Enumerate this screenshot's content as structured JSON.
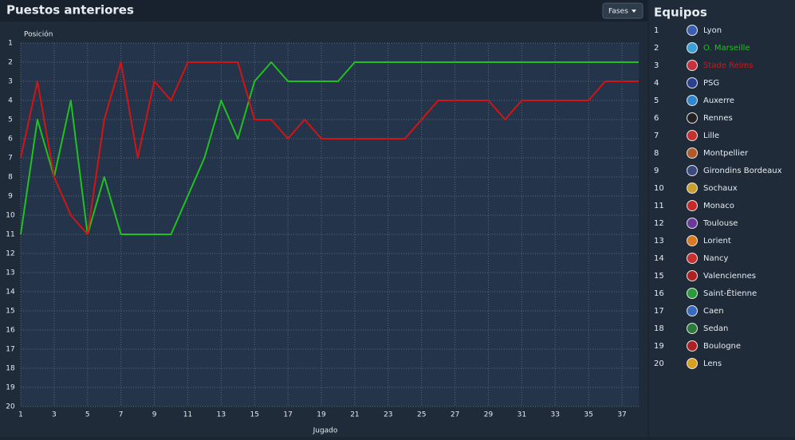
{
  "header": {
    "title": "Puestos anteriores",
    "button": "Fases",
    "panel_title": "Equipos"
  },
  "chart_data": {
    "type": "line",
    "x_label": "Jugado",
    "y_label": "Posición",
    "x": [
      1,
      2,
      3,
      4,
      5,
      6,
      7,
      8,
      9,
      10,
      11,
      12,
      13,
      14,
      15,
      16,
      17,
      18,
      19,
      20,
      21,
      22,
      23,
      24,
      25,
      26,
      27,
      28,
      29,
      30,
      31,
      32,
      33,
      34,
      35,
      36,
      37,
      38
    ],
    "series": [
      {
        "name": "O. Marseille",
        "color": "#1fc21f",
        "values": [
          11,
          5,
          8,
          4,
          11,
          8,
          11,
          11,
          11,
          11,
          9,
          7,
          4,
          6,
          3,
          2,
          3,
          3,
          3,
          3,
          2,
          2,
          2,
          2,
          2,
          2,
          2,
          2,
          2,
          2,
          2,
          2,
          2,
          2,
          2,
          2,
          2,
          2
        ]
      },
      {
        "name": "Stade Reims",
        "color": "#d41414",
        "values": [
          7,
          3,
          8,
          10,
          11,
          5,
          2,
          7,
          3,
          4,
          2,
          2,
          2,
          2,
          5,
          5,
          6,
          5,
          6,
          6,
          6,
          6,
          6,
          6,
          5,
          4,
          4,
          4,
          4,
          5,
          4,
          4,
          4,
          4,
          4,
          3,
          3,
          3
        ]
      }
    ],
    "xlim": [
      1,
      38
    ],
    "xticks": [
      1,
      3,
      5,
      7,
      9,
      11,
      13,
      15,
      17,
      19,
      21,
      23,
      25,
      27,
      29,
      31,
      33,
      35,
      37
    ],
    "ylim": [
      1,
      20
    ],
    "yticks": [
      1,
      2,
      3,
      4,
      5,
      6,
      7,
      8,
      9,
      10,
      11,
      12,
      13,
      14,
      15,
      16,
      17,
      18,
      19,
      20
    ],
    "y_inverted": true,
    "grid": true
  },
  "teams": [
    {
      "pos": 1,
      "name": "Lyon"
    },
    {
      "pos": 2,
      "name": "O. Marseille"
    },
    {
      "pos": 3,
      "name": "Stade Reims"
    },
    {
      "pos": 4,
      "name": "PSG"
    },
    {
      "pos": 5,
      "name": "Auxerre"
    },
    {
      "pos": 6,
      "name": "Rennes"
    },
    {
      "pos": 7,
      "name": "Lille"
    },
    {
      "pos": 8,
      "name": "Montpellier"
    },
    {
      "pos": 9,
      "name": "Girondins Bordeaux"
    },
    {
      "pos": 10,
      "name": "Sochaux"
    },
    {
      "pos": 11,
      "name": "Monaco"
    },
    {
      "pos": 12,
      "name": "Toulouse"
    },
    {
      "pos": 13,
      "name": "Lorient"
    },
    {
      "pos": 14,
      "name": "Nancy"
    },
    {
      "pos": 15,
      "name": "Valenciennes"
    },
    {
      "pos": 16,
      "name": "Saint-Étienne"
    },
    {
      "pos": 17,
      "name": "Caen"
    },
    {
      "pos": 18,
      "name": "Sedan"
    },
    {
      "pos": 19,
      "name": "Boulogne"
    },
    {
      "pos": 20,
      "name": "Lens"
    }
  ]
}
